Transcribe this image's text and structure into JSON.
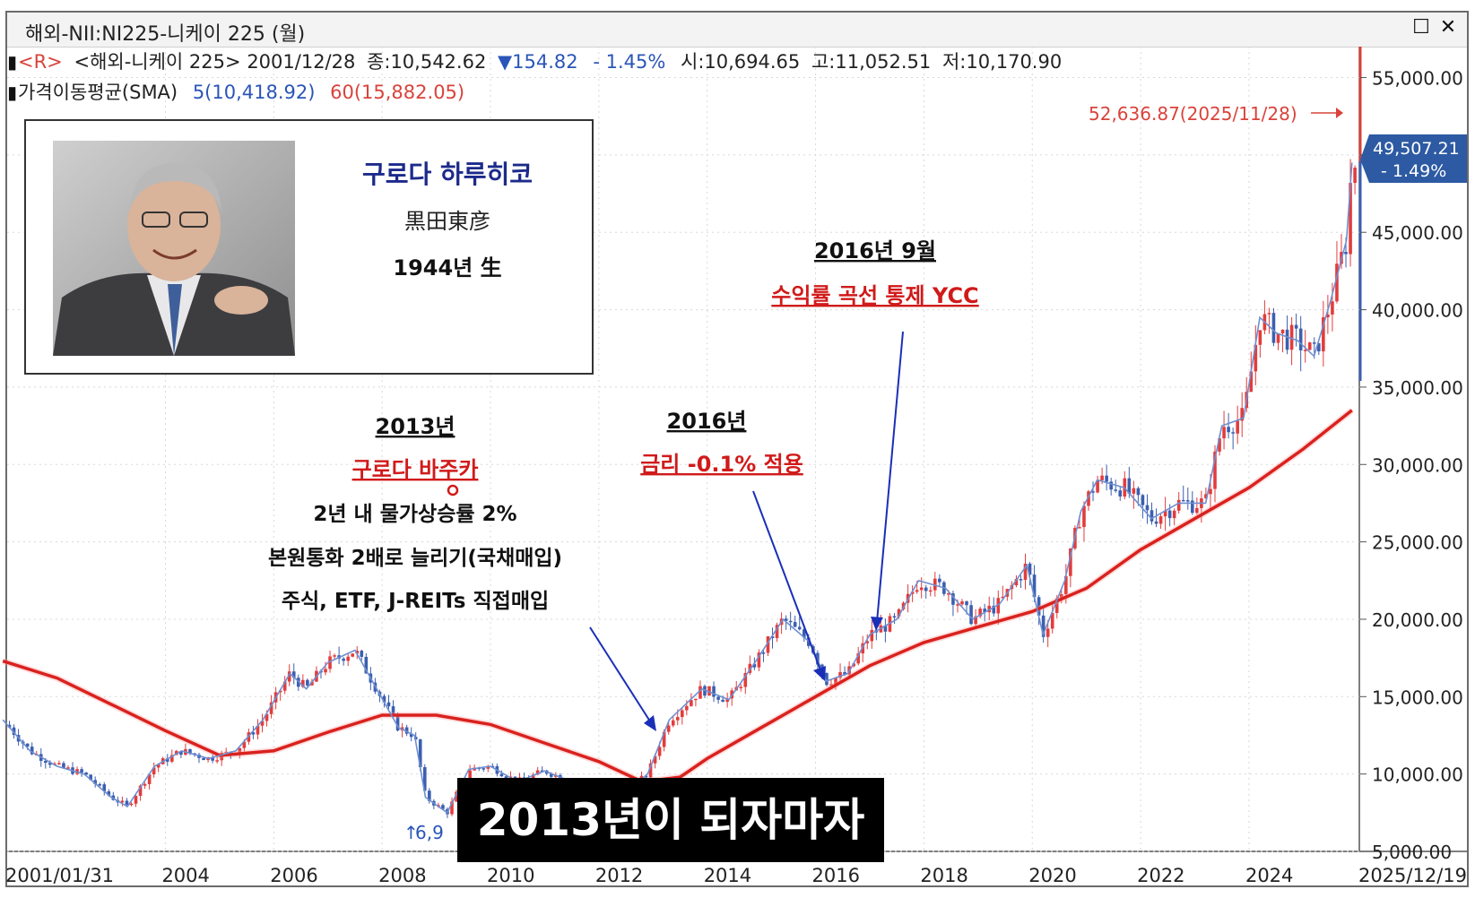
{
  "window": {
    "title": "해외-NII:NI225-니케이 225 (월)",
    "maximize_glyph": "☐",
    "close_glyph": "✕"
  },
  "info_line1": {
    "prefix": "<R>",
    "symbol": "<해외-니케이 225>",
    "date": "2001/12/28",
    "close": "종:10,542.62",
    "change": "▼154.82",
    "change_pct": "- 1.45%",
    "open": "시:10,694.65",
    "high": "고:11,052.51",
    "low": "저:10,170.90"
  },
  "info_line2": {
    "label": "가격이동평균(SMA)",
    "sma5": "5(10,418.92)",
    "sma60": "60(15,882.05)"
  },
  "profile": {
    "name": "구로다 하루히코",
    "name_kanji": "黒田東彦",
    "birth": "1944년 生"
  },
  "annotations": {
    "a2013": {
      "year": "2013년",
      "headline": "구로다 바주카",
      "line1": "2년 내 물가상승률 2%",
      "line2": "본원통화 2배로 늘리기(국채매입)",
      "line3": "주식, ETF, J-REITs 직접매입"
    },
    "a2016": {
      "year": "2016년",
      "headline": "금리 -0.1% 적용"
    },
    "a2016_9": {
      "year": "2016년 9월",
      "headline": "수익률 곡선 통제 YCC"
    }
  },
  "caption": "2013년이 되자마자",
  "chart_data": {
    "type": "line",
    "x_range": [
      "2001/01/31",
      "2025/12/19"
    ],
    "x_tick_labels": [
      "2001/01/31",
      "2004",
      "2006",
      "2008",
      "2010",
      "2012",
      "2014",
      "2016",
      "2018",
      "2020",
      "2022",
      "2024",
      "2025/12/19"
    ],
    "y_tick_labels": [
      "55,000.00",
      "50,000.00",
      "45,000.00",
      "40,000.00",
      "35,000.00",
      "30,000.00",
      "25,000.00",
      "20,000.00",
      "15,000.00",
      "10,000.00",
      "5,000.00"
    ],
    "ylim": [
      5000,
      57000
    ],
    "high_label": "52,636.87(2025/11/28)",
    "low_label": "6,9",
    "last_price": "49,507.21",
    "last_change": "- 1.49%",
    "price_series": [
      [
        2001.0,
        13500
      ],
      [
        2001.5,
        11500
      ],
      [
        2002.0,
        10500
      ],
      [
        2002.5,
        10000
      ],
      [
        2003.0,
        8500
      ],
      [
        2003.3,
        7900
      ],
      [
        2003.8,
        10500
      ],
      [
        2004.3,
        11500
      ],
      [
        2004.8,
        11000
      ],
      [
        2005.3,
        11500
      ],
      [
        2005.8,
        13500
      ],
      [
        2006.3,
        16500
      ],
      [
        2006.6,
        15500
      ],
      [
        2007.0,
        17200
      ],
      [
        2007.5,
        18000
      ],
      [
        2007.9,
        15500
      ],
      [
        2008.3,
        13000
      ],
      [
        2008.6,
        12500
      ],
      [
        2008.8,
        8500
      ],
      [
        2009.2,
        7500
      ],
      [
        2009.6,
        10300
      ],
      [
        2010.0,
        10500
      ],
      [
        2010.5,
        9500
      ],
      [
        2011.0,
        10200
      ],
      [
        2011.5,
        9500
      ],
      [
        2011.9,
        8500
      ],
      [
        2012.5,
        8800
      ],
      [
        2012.9,
        10000
      ],
      [
        2013.3,
        13500
      ],
      [
        2013.9,
        15500
      ],
      [
        2014.4,
        14800
      ],
      [
        2014.9,
        17300
      ],
      [
        2015.4,
        20000
      ],
      [
        2015.9,
        18500
      ],
      [
        2016.2,
        16000
      ],
      [
        2016.6,
        16500
      ],
      [
        2017.0,
        19000
      ],
      [
        2017.5,
        20000
      ],
      [
        2017.9,
        22500
      ],
      [
        2018.4,
        22000
      ],
      [
        2018.9,
        20000
      ],
      [
        2019.4,
        21000
      ],
      [
        2019.9,
        23500
      ],
      [
        2020.2,
        19000
      ],
      [
        2020.6,
        22500
      ],
      [
        2020.9,
        27000
      ],
      [
        2021.2,
        29000
      ],
      [
        2021.7,
        28500
      ],
      [
        2022.2,
        26500
      ],
      [
        2022.7,
        27500
      ],
      [
        2023.2,
        27500
      ],
      [
        2023.5,
        32500
      ],
      [
        2023.9,
        33000
      ],
      [
        2024.2,
        39500
      ],
      [
        2024.5,
        38500
      ],
      [
        2024.9,
        38000
      ],
      [
        2025.2,
        37000
      ],
      [
        2025.5,
        40500
      ],
      [
        2025.8,
        44500
      ],
      [
        2025.9,
        49500
      ]
    ],
    "sma60_series": [
      [
        2001.0,
        17300
      ],
      [
        2002.0,
        16200
      ],
      [
        2003.0,
        14500
      ],
      [
        2004.0,
        12800
      ],
      [
        2005.0,
        11200
      ],
      [
        2006.0,
        11500
      ],
      [
        2007.0,
        12700
      ],
      [
        2008.0,
        13800
      ],
      [
        2009.0,
        13800
      ],
      [
        2010.0,
        13200
      ],
      [
        2011.0,
        12000
      ],
      [
        2012.0,
        10800
      ],
      [
        2012.8,
        9500
      ],
      [
        2013.5,
        9800
      ],
      [
        2014.0,
        11000
      ],
      [
        2015.0,
        13000
      ],
      [
        2016.0,
        15000
      ],
      [
        2017.0,
        17000
      ],
      [
        2018.0,
        18500
      ],
      [
        2019.0,
        19500
      ],
      [
        2020.0,
        20500
      ],
      [
        2021.0,
        22000
      ],
      [
        2022.0,
        24500
      ],
      [
        2023.0,
        26500
      ],
      [
        2024.0,
        28500
      ],
      [
        2025.0,
        31000
      ],
      [
        2025.9,
        33500
      ]
    ]
  }
}
